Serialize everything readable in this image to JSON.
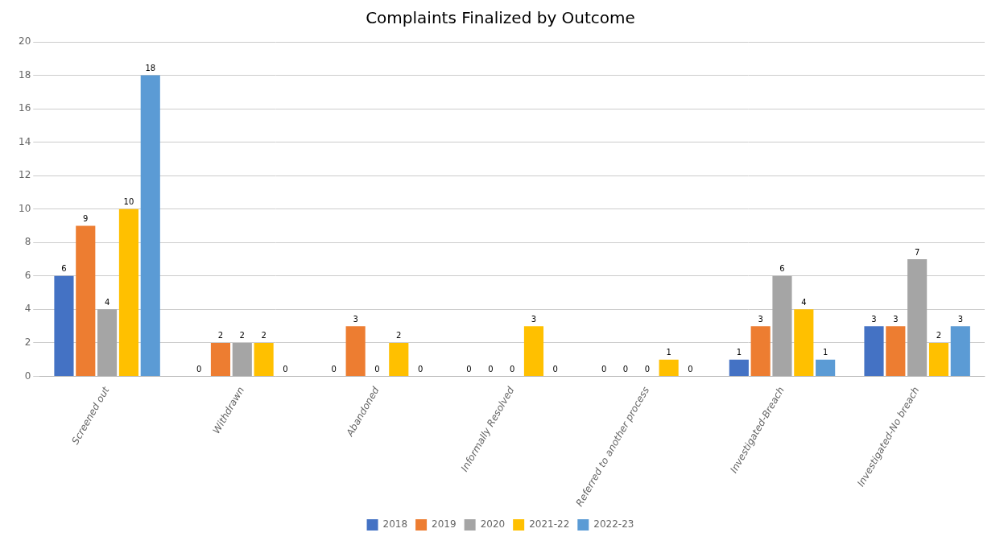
{
  "chart_data": {
    "type": "bar",
    "title": "Complaints Finalized by Outcome",
    "categories": [
      "Screened out",
      "Withdrawn",
      "Abandoned",
      "Informally Resolved",
      "Referred to another process",
      "Investigated-Breach",
      "Investigated-No breach"
    ],
    "series": [
      {
        "name": "2018",
        "color": "#4472C4",
        "values": [
          6,
          0,
          0,
          0,
          0,
          1,
          3
        ]
      },
      {
        "name": "2019",
        "color": "#ED7D31",
        "values": [
          9,
          2,
          3,
          0,
          0,
          3,
          3
        ]
      },
      {
        "name": "2020",
        "color": "#A5A5A5",
        "values": [
          4,
          2,
          0,
          0,
          0,
          6,
          7
        ]
      },
      {
        "name": "2021-22",
        "color": "#FFC000",
        "values": [
          10,
          2,
          2,
          3,
          1,
          4,
          2
        ]
      },
      {
        "name": "2022-23",
        "color": "#5B9BD5",
        "values": [
          18,
          0,
          0,
          0,
          0,
          1,
          3
        ]
      }
    ],
    "ylim": [
      0,
      20
    ],
    "yticks": [
      0,
      2,
      4,
      6,
      8,
      10,
      12,
      14,
      16,
      18,
      20
    ],
    "grid": true,
    "legend": "bottom",
    "data_labels": true
  }
}
